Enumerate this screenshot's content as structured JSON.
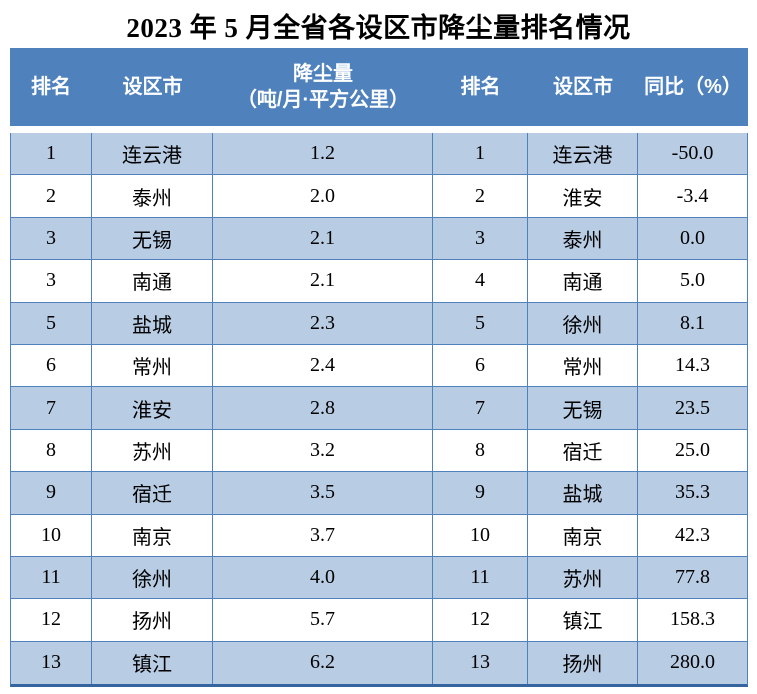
{
  "title": "2023 年 5 月全省各设区市降尘量排名情况",
  "table": {
    "headers": {
      "rank_left": "排名",
      "city_left": "设区市",
      "dustfall_line1": "降尘量",
      "dustfall_line2": "（吨/月·平方公里）",
      "rank_right": "排名",
      "city_right": "设区市",
      "yoy": "同比（%）"
    },
    "rows": [
      {
        "rank_l": "1",
        "city_l": "连云港",
        "dust": "1.2",
        "rank_r": "1",
        "city_r": "连云港",
        "yoy": "-50.0"
      },
      {
        "rank_l": "2",
        "city_l": "泰州",
        "dust": "2.0",
        "rank_r": "2",
        "city_r": "淮安",
        "yoy": "-3.4"
      },
      {
        "rank_l": "3",
        "city_l": "无锡",
        "dust": "2.1",
        "rank_r": "3",
        "city_r": "泰州",
        "yoy": "0.0"
      },
      {
        "rank_l": "3",
        "city_l": "南通",
        "dust": "2.1",
        "rank_r": "4",
        "city_r": "南通",
        "yoy": "5.0"
      },
      {
        "rank_l": "5",
        "city_l": "盐城",
        "dust": "2.3",
        "rank_r": "5",
        "city_r": "徐州",
        "yoy": "8.1"
      },
      {
        "rank_l": "6",
        "city_l": "常州",
        "dust": "2.4",
        "rank_r": "6",
        "city_r": "常州",
        "yoy": "14.3"
      },
      {
        "rank_l": "7",
        "city_l": "淮安",
        "dust": "2.8",
        "rank_r": "7",
        "city_r": "无锡",
        "yoy": "23.5"
      },
      {
        "rank_l": "8",
        "city_l": "苏州",
        "dust": "3.2",
        "rank_r": "8",
        "city_r": "宿迁",
        "yoy": "25.0"
      },
      {
        "rank_l": "9",
        "city_l": "宿迁",
        "dust": "3.5",
        "rank_r": "9",
        "city_r": "盐城",
        "yoy": "35.3"
      },
      {
        "rank_l": "10",
        "city_l": "南京",
        "dust": "3.7",
        "rank_r": "10",
        "city_r": "南京",
        "yoy": "42.3"
      },
      {
        "rank_l": "11",
        "city_l": "徐州",
        "dust": "4.0",
        "rank_r": "11",
        "city_r": "苏州",
        "yoy": "77.8"
      },
      {
        "rank_l": "12",
        "city_l": "扬州",
        "dust": "5.7",
        "rank_r": "12",
        "city_r": "镇江",
        "yoy": "158.3"
      },
      {
        "rank_l": "13",
        "city_l": "镇江",
        "dust": "6.2",
        "rank_r": "13",
        "city_r": "扬州",
        "yoy": "280.0"
      }
    ]
  },
  "colors": {
    "header_bg": "#4F81BD",
    "row_alt_bg": "#B8CCE4",
    "row_bg": "#FFFFFF",
    "border": "#4F81BD",
    "border_bottom": "#35659F",
    "header_text": "#FFFFFF",
    "body_text": "#000000"
  }
}
